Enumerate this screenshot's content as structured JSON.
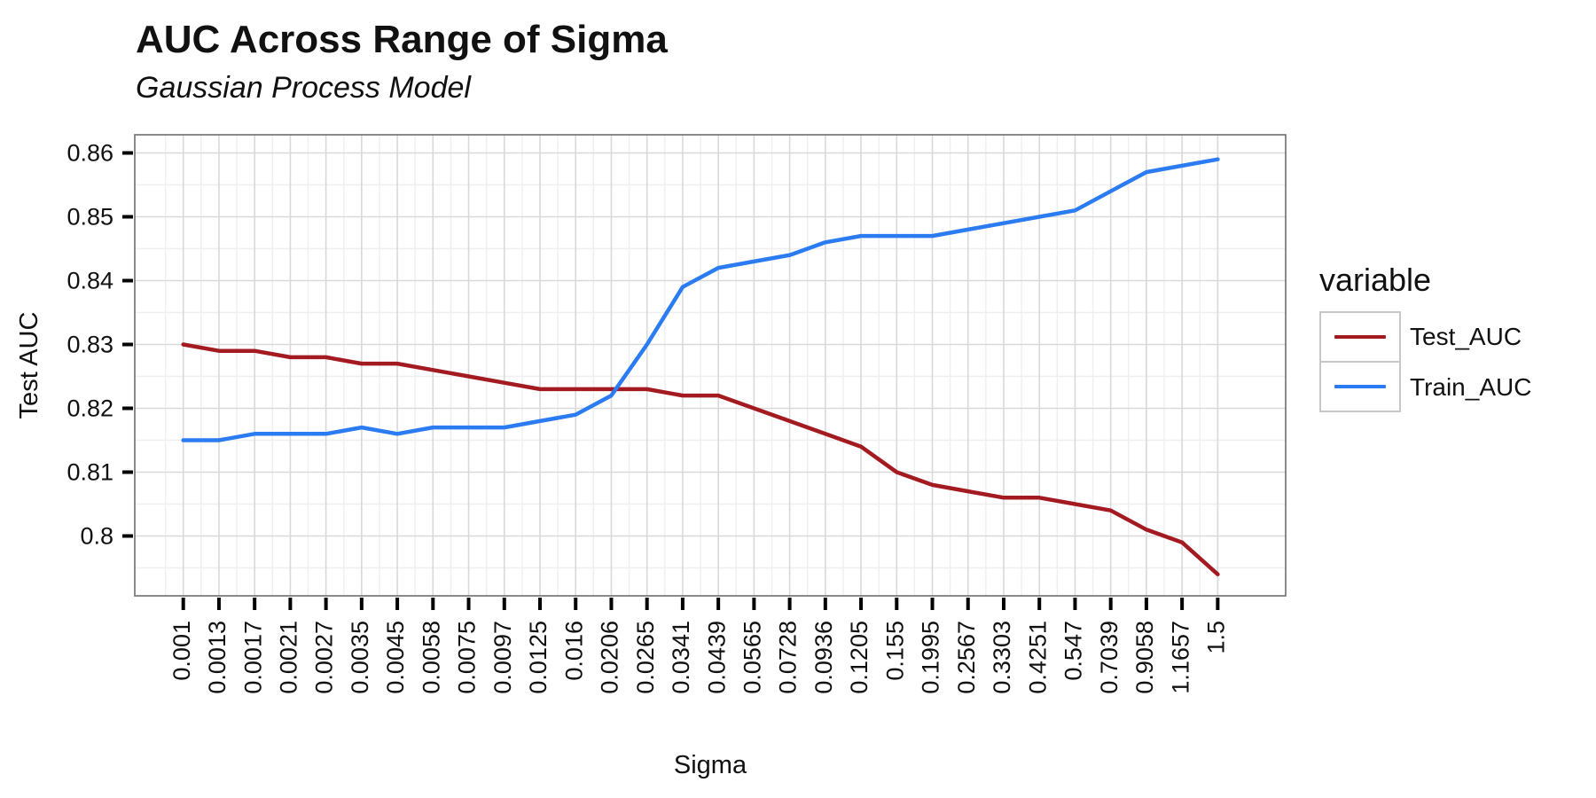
{
  "header": {
    "title": "AUC Across Range of Sigma",
    "subtitle": "Gaussian Process Model"
  },
  "legend": {
    "title": "variable",
    "entries": [
      {
        "label": "Test_AUC",
        "color": "#A31A21"
      },
      {
        "label": "Train_AUC",
        "color": "#2B7CF2"
      }
    ]
  },
  "chart_data": {
    "type": "line",
    "title": "AUC Across Range of Sigma",
    "subtitle": "Gaussian Process Model",
    "xlabel": "Sigma",
    "ylabel": "Test AUC",
    "legend_title": "variable",
    "legend_position": "right",
    "grid": true,
    "x_tick_rotation": 90,
    "categories": [
      "0.001",
      "0.0013",
      "0.0017",
      "0.0021",
      "0.0027",
      "0.0035",
      "0.0045",
      "0.0058",
      "0.0075",
      "0.0097",
      "0.0125",
      "0.016",
      "0.0206",
      "0.0265",
      "0.0341",
      "0.0439",
      "0.0565",
      "0.0728",
      "0.0936",
      "0.1205",
      "0.155",
      "0.1995",
      "0.2567",
      "0.3303",
      "0.4251",
      "0.547",
      "0.7039",
      "0.9058",
      "1.1657",
      "1.5"
    ],
    "y_ticks": [
      "0.86",
      "0.85",
      "0.84",
      "0.83",
      "0.82",
      "0.81",
      "0.8"
    ],
    "y_tick_values": [
      0.86,
      0.85,
      0.84,
      0.83,
      0.82,
      0.81,
      0.8
    ],
    "ylim": [
      0.7906,
      0.8628
    ],
    "series": [
      {
        "name": "Test_AUC",
        "color": "#A31A21",
        "values": [
          0.83,
          0.829,
          0.829,
          0.828,
          0.828,
          0.827,
          0.827,
          0.826,
          0.825,
          0.824,
          0.823,
          0.823,
          0.823,
          0.823,
          0.822,
          0.822,
          0.82,
          0.818,
          0.816,
          0.814,
          0.81,
          0.808,
          0.807,
          0.806,
          0.806,
          0.805,
          0.804,
          0.801,
          0.799,
          0.794
        ]
      },
      {
        "name": "Train_AUC",
        "color": "#2B7CF2",
        "values": [
          0.815,
          0.815,
          0.816,
          0.816,
          0.816,
          0.817,
          0.816,
          0.817,
          0.817,
          0.817,
          0.818,
          0.819,
          0.822,
          0.83,
          0.839,
          0.842,
          0.843,
          0.844,
          0.846,
          0.847,
          0.847,
          0.847,
          0.848,
          0.849,
          0.85,
          0.851,
          0.854,
          0.857,
          0.858,
          0.859
        ]
      }
    ]
  }
}
